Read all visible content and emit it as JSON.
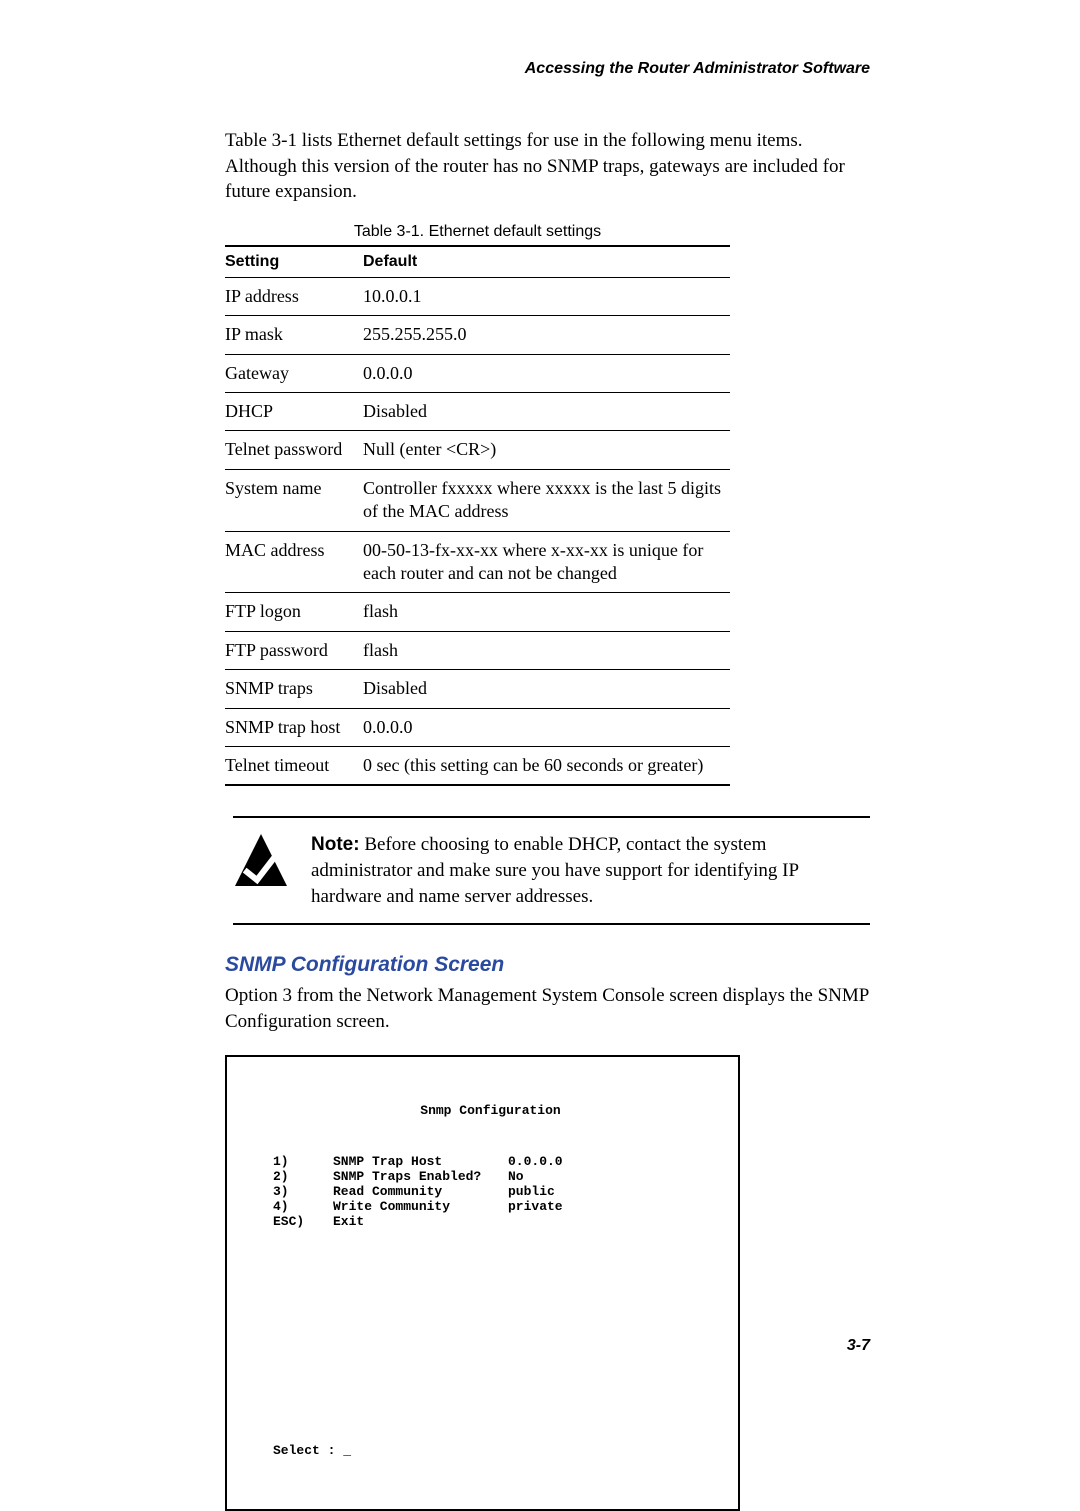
{
  "header": {
    "running_title": "Accessing the Router Administrator Software"
  },
  "intro": "Table 3-1 lists Ethernet default settings for use in the following menu items. Although this version of the router has no SNMP traps, gateways are included for future expansion.",
  "table": {
    "caption": "Table 3-1. Ethernet default settings",
    "columns": [
      "Setting",
      "Default"
    ],
    "rows": [
      {
        "setting": "IP address",
        "default": "10.0.0.1"
      },
      {
        "setting": "IP mask",
        "default": "255.255.255.0"
      },
      {
        "setting": "Gateway",
        "default": "0.0.0.0"
      },
      {
        "setting": "DHCP",
        "default": "Disabled"
      },
      {
        "setting": "Telnet password",
        "default": "Null (enter <CR>)"
      },
      {
        "setting": "System name",
        "default": "Controller fxxxxx where xxxxx is the last 5 digits of the MAC address"
      },
      {
        "setting": "MAC address",
        "default": "00-50-13-fx-xx-xx where x-xx-xx is unique for each router and can not be changed"
      },
      {
        "setting": "FTP logon",
        "default": "flash"
      },
      {
        "setting": "FTP password",
        "default": "flash"
      },
      {
        "setting": "SNMP traps",
        "default": "Disabled"
      },
      {
        "setting": "SNMP trap host",
        "default": "0.0.0.0"
      },
      {
        "setting": "Telnet timeout",
        "default": "0 sec (this setting can be 60 seconds or greater)"
      }
    ]
  },
  "note": {
    "label": "Note:",
    "text": " Before choosing to enable DHCP, contact the system administrator and make sure you have support for identifying IP hardware and name server addresses."
  },
  "section": {
    "heading": "SNMP Configuration Screen",
    "body": "Option 3 from the Network Management System Console screen displays the SNMP Configuration screen.",
    "heading_color": "#2a4aa0"
  },
  "terminal": {
    "title": "Snmp Configuration",
    "rows": [
      {
        "key": "1)",
        "label": "SNMP Trap Host",
        "value": "0.0.0.0"
      },
      {
        "key": "2)",
        "label": "SNMP Traps Enabled?",
        "value": "No"
      },
      {
        "key": "3)",
        "label": "Read Community",
        "value": "public"
      },
      {
        "key": "4)",
        "label": "Write Community",
        "value": "private"
      },
      {
        "key": "ESC)",
        "label": "Exit",
        "value": ""
      }
    ],
    "prompt": "Select : _"
  },
  "footer": {
    "page_number": "3-7"
  }
}
